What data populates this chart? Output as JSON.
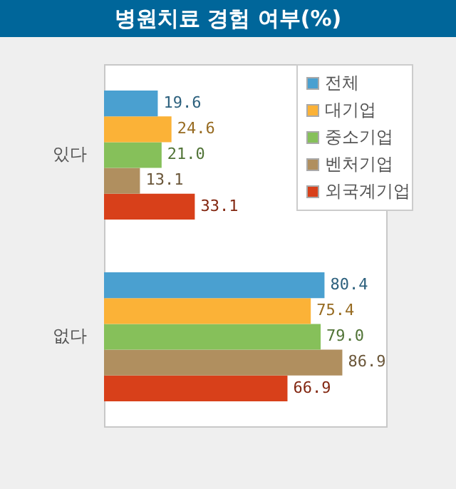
{
  "chart_data": {
    "type": "bar",
    "orientation": "horizontal",
    "title": "병원치료 경험 여부(%)",
    "categories": [
      "있다",
      "없다"
    ],
    "series": [
      {
        "name": "전체",
        "color": "#4aa0d0",
        "values": [
          19.6,
          80.4
        ],
        "value_labels": [
          "19.6",
          "80.4"
        ]
      },
      {
        "name": "대기업",
        "color": "#fbb237",
        "values": [
          24.6,
          75.4
        ],
        "value_labels": [
          "24.6",
          "75.4"
        ]
      },
      {
        "name": "중소기업",
        "color": "#86c05a",
        "values": [
          21.0,
          79.0
        ],
        "value_labels": [
          "21.0",
          "79.0"
        ]
      },
      {
        "name": "벤처기업",
        "color": "#b08f5f",
        "values": [
          13.1,
          86.9
        ],
        "value_labels": [
          "13.1",
          "86.9"
        ]
      },
      {
        "name": "외국계기업",
        "color": "#d8401a",
        "values": [
          33.1,
          66.9
        ],
        "value_labels": [
          "33.1",
          "66.9"
        ]
      }
    ],
    "legend": "top right"
  }
}
